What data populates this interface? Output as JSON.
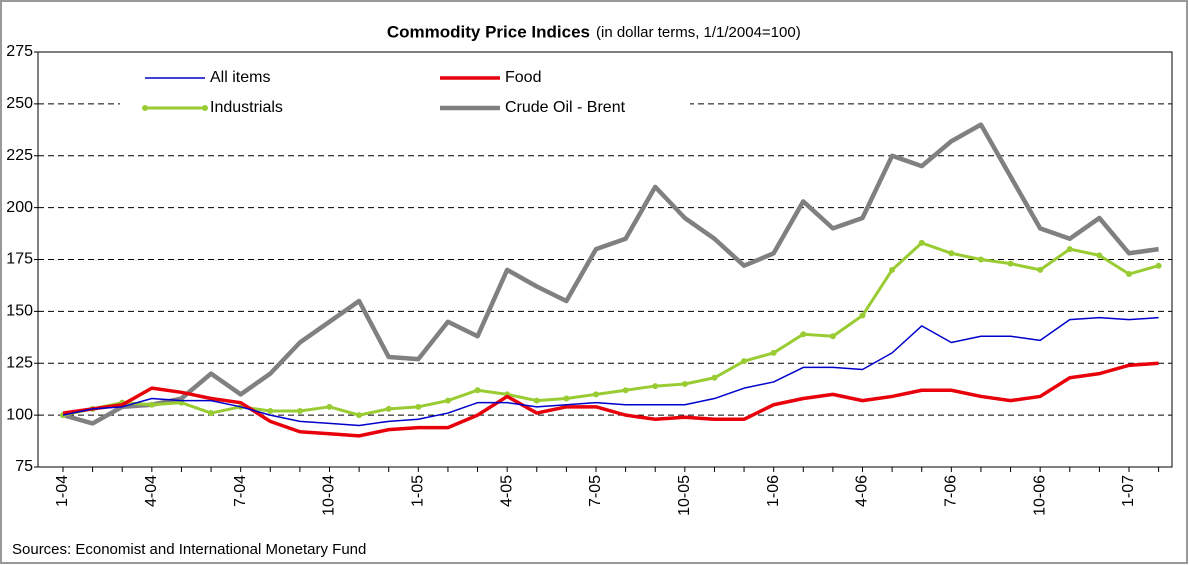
{
  "chart_data": {
    "type": "line",
    "title": "Commodity Price Indices",
    "subtitle": "(in dollar terms, 1/1/2004=100)",
    "source": "Sources: Economist and International Monetary Fund",
    "categories": [
      "1-04",
      null,
      null,
      "4-04",
      null,
      null,
      "7-04",
      null,
      null,
      "10-04",
      null,
      null,
      "1-05",
      null,
      null,
      "4-05",
      null,
      null,
      "7-05",
      null,
      null,
      "10-05",
      null,
      null,
      "1-06",
      null,
      null,
      "4-06",
      null,
      null,
      "7-06",
      null,
      null,
      "10-06",
      null,
      null,
      "1-07",
      null
    ],
    "series": [
      {
        "name": "All items",
        "color": "#0000cc",
        "width": 1.5,
        "markers": false,
        "values": [
          100,
          103,
          104,
          108,
          107,
          107,
          104,
          100,
          97,
          96,
          95,
          97,
          98,
          101,
          106,
          106,
          104,
          105,
          106,
          105,
          105,
          105,
          108,
          113,
          116,
          123,
          123,
          122,
          130,
          143,
          135,
          138,
          138,
          136,
          146,
          147,
          146,
          147
        ]
      },
      {
        "name": "Food",
        "color": "#e8000b",
        "width": 3.5,
        "markers": false,
        "values": [
          101,
          103,
          105,
          113,
          111,
          108,
          106,
          97,
          92,
          91,
          90,
          93,
          94,
          94,
          100,
          109,
          101,
          104,
          104,
          100,
          98,
          99,
          98,
          98,
          105,
          108,
          110,
          107,
          109,
          112,
          112,
          109,
          107,
          109,
          118,
          120,
          124,
          125
        ]
      },
      {
        "name": "Industrials",
        "color": "#99cc33",
        "width": 3,
        "markers": true,
        "values": [
          100,
          103,
          106,
          105,
          106,
          101,
          104,
          102,
          102,
          104,
          100,
          103,
          104,
          107,
          112,
          110,
          107,
          108,
          110,
          112,
          114,
          115,
          118,
          126,
          130,
          139,
          138,
          148,
          170,
          183,
          178,
          175,
          173,
          170,
          180,
          177,
          168,
          172
        ]
      },
      {
        "name": "Crude Oil - Brent",
        "color": "#808080",
        "width": 4.5,
        "markers": false,
        "values": [
          100,
          96,
          104,
          105,
          108,
          120,
          110,
          120,
          135,
          145,
          155,
          128,
          127,
          145,
          138,
          170,
          162,
          155,
          180,
          185,
          210,
          195,
          185,
          172,
          178,
          203,
          190,
          195,
          225,
          220,
          232,
          240,
          215,
          190,
          185,
          195,
          178,
          180
        ]
      }
    ],
    "ylim": [
      75,
      275
    ],
    "yticks": [
      75,
      100,
      125,
      150,
      175,
      200,
      225,
      250,
      275
    ],
    "grid": true,
    "legend": "top"
  }
}
